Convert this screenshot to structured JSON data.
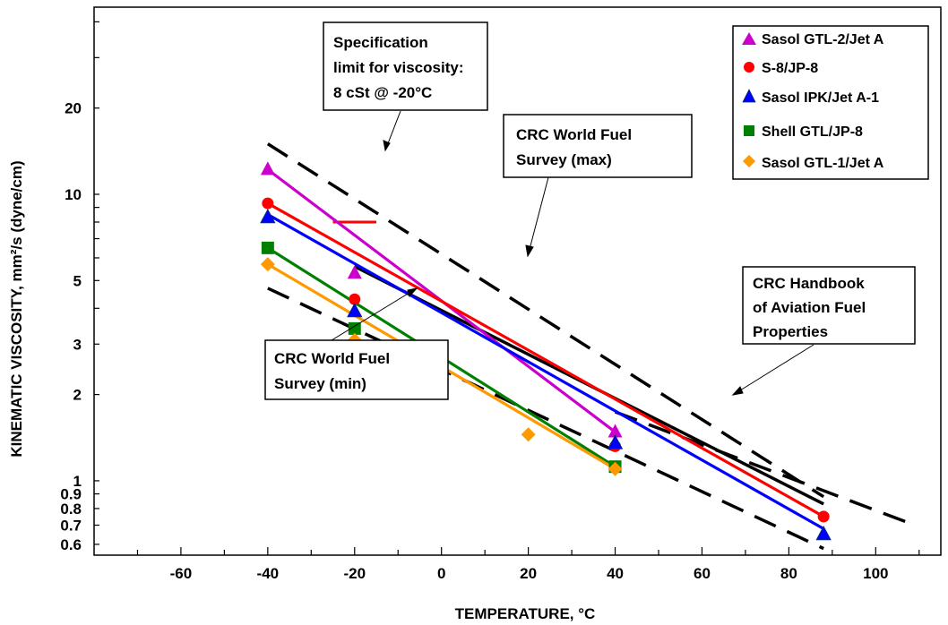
{
  "chart_data": {
    "type": "line",
    "xlabel": "TEMPERATURE, °C",
    "ylabel": "KINEMATIC VISCOSITY, mm²/s (dyne/cm)",
    "x_scale": "linear",
    "y_scale": "log",
    "xlim": [
      -80,
      115
    ],
    "ylim": [
      0.55,
      45
    ],
    "x_ticks": [
      -60,
      -40,
      -20,
      0,
      20,
      40,
      60,
      80,
      100
    ],
    "y_ticks": [
      0.6,
      0.7,
      0.8,
      0.9,
      1,
      2,
      3,
      5,
      10,
      20
    ],
    "y_tick_labels": [
      "0.6",
      "0.7",
      "0.8",
      "0.9",
      "1",
      "2",
      "3",
      "5",
      "10",
      "20"
    ],
    "legend_position": "top-right",
    "series": [
      {
        "name": "Sasol GTL-2/Jet A",
        "color": "#cc00cc",
        "marker": "triangle",
        "x": [
          -40,
          -20,
          40
        ],
        "y": [
          12.2,
          5.3,
          1.48
        ],
        "fit": [
          [
            -40,
            12.2
          ],
          [
            40,
            1.48
          ]
        ]
      },
      {
        "name": "S-8/JP-8",
        "color": "#ff0000",
        "marker": "circle",
        "x": [
          -40,
          -20,
          40,
          88
        ],
        "y": [
          9.3,
          4.3,
          1.32,
          0.75
        ],
        "fit": [
          [
            -40,
            9.3
          ],
          [
            88,
            0.75
          ]
        ]
      },
      {
        "name": "Sasol IPK/Jet A-1",
        "color": "#0000ff",
        "marker": "triangle",
        "x": [
          -40,
          -20,
          40,
          88
        ],
        "y": [
          8.3,
          3.9,
          1.35,
          0.65
        ],
        "fit": [
          [
            -40,
            8.5
          ],
          [
            88,
            0.68
          ]
        ]
      },
      {
        "name": "Shell GTL/JP-8",
        "color": "#008000",
        "marker": "square",
        "x": [
          -40,
          -20,
          40
        ],
        "y": [
          6.5,
          3.4,
          1.12
        ],
        "fit": [
          [
            -40,
            6.5
          ],
          [
            40,
            1.12
          ]
        ]
      },
      {
        "name": "Sasol GTL-1/Jet A",
        "color": "#ff9900",
        "marker": "diamond",
        "x": [
          -40,
          -20,
          20,
          40
        ],
        "y": [
          5.7,
          3.1,
          1.45,
          1.1
        ],
        "fit": [
          [
            -40,
            5.7
          ],
          [
            40,
            1.1
          ]
        ]
      }
    ],
    "reference_lines": [
      {
        "key": "survey_max",
        "style": "dashed",
        "color": "#000000",
        "from": [
          -40,
          15
        ],
        "to": [
          88,
          0.88
        ]
      },
      {
        "key": "survey_min",
        "style": "dashed",
        "color": "#000000",
        "from": [
          -40,
          4.7
        ],
        "to": [
          88,
          0.58
        ]
      },
      {
        "key": "handbook_upper",
        "style": "dashed",
        "color": "#000000",
        "from": [
          40,
          1.74
        ],
        "to": [
          109,
          0.7
        ]
      },
      {
        "key": "handbook_solid",
        "style": "solid",
        "color": "#000000",
        "from": [
          -20,
          5.6
        ],
        "to": [
          88,
          0.83
        ]
      }
    ],
    "spec_limit": {
      "x": [
        -25,
        -15
      ],
      "y": 8,
      "color": "#ff0000"
    },
    "annotations": {
      "spec": [
        "Specification",
        "limit for viscosity:",
        "8 cSt @ -20°C"
      ],
      "survey_max": [
        "CRC World Fuel",
        "Survey (max)"
      ],
      "survey_min": [
        "CRC World Fuel",
        "Survey (min)"
      ],
      "handbook": [
        "CRC Handbook",
        "of Aviation Fuel",
        "Properties"
      ]
    }
  }
}
